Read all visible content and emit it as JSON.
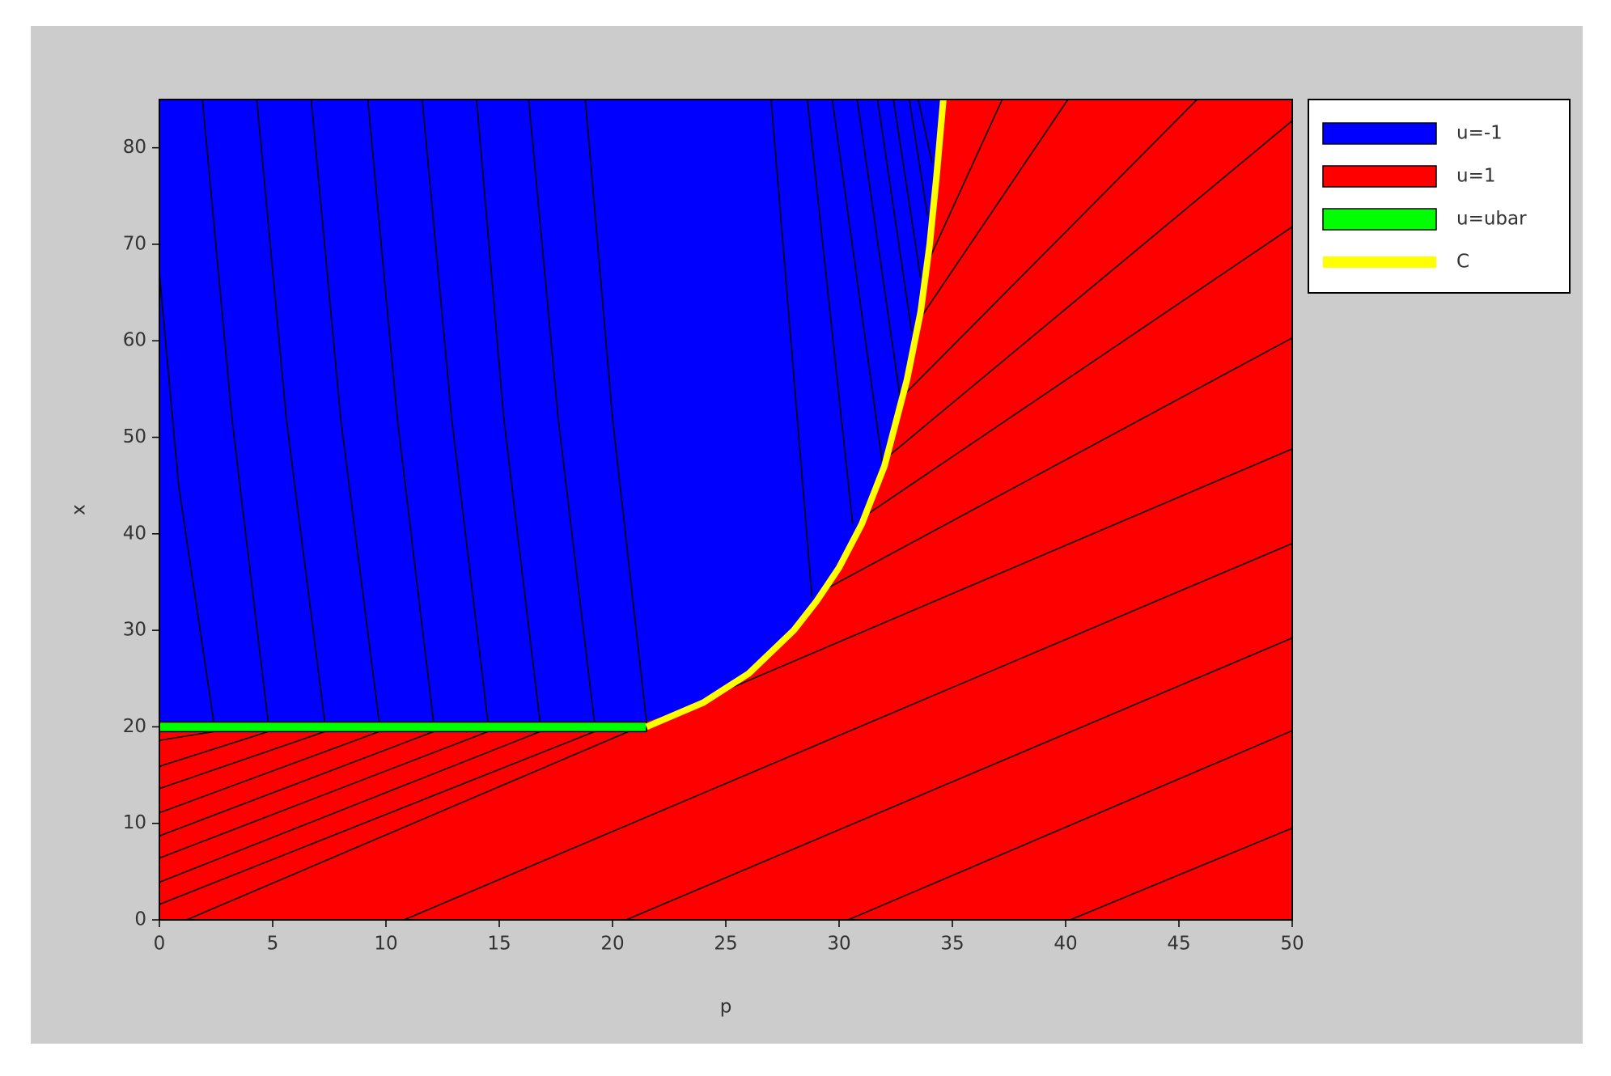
{
  "chart_data": {
    "type": "region",
    "xlabel": "p",
    "ylabel": "x",
    "xlim": [
      0,
      50
    ],
    "ylim": [
      0,
      85
    ],
    "xticks": [
      0,
      5,
      10,
      15,
      20,
      25,
      30,
      35,
      40,
      45,
      50
    ],
    "yticks": [
      0,
      10,
      20,
      30,
      40,
      50,
      60,
      70,
      80
    ],
    "series": [
      {
        "name": "u=-1",
        "color": "#0000ff",
        "style": "area",
        "x": [
          0,
          0,
          21.5,
          24,
          26,
          28,
          29,
          30,
          31,
          32,
          33,
          33.6,
          34,
          34.3,
          34.6
        ],
        "values": [
          85,
          20.5,
          20.5,
          22.5,
          25.5,
          30,
          33,
          36.5,
          41,
          47,
          56,
          63,
          70,
          77,
          85
        ]
      },
      {
        "name": "u=1",
        "color": "#ff0000",
        "style": "area",
        "x": [
          0,
          50,
          50,
          0
        ],
        "values": [
          0,
          0,
          85,
          85
        ]
      },
      {
        "name": "u=ubar",
        "color": "#00ff00",
        "style": "area",
        "x": [
          0,
          21.5,
          21.5,
          0
        ],
        "values": [
          19.5,
          19.5,
          20.5,
          20.5
        ]
      },
      {
        "name": "C",
        "color": "#ffff00",
        "style": "line",
        "x": [
          21.5,
          24,
          26,
          28,
          29,
          30,
          31,
          32,
          33,
          33.6,
          34,
          34.3,
          34.6
        ],
        "values": [
          20,
          22.5,
          25.5,
          30,
          33,
          36.5,
          41,
          47,
          56,
          63,
          70,
          77,
          85
        ]
      }
    ],
    "trajectories": [
      {
        "x": [
          1.2,
          50
        ],
        "values": [
          0,
          48.8
        ]
      },
      {
        "x": [
          10.8,
          50
        ],
        "values": [
          0,
          39
        ]
      },
      {
        "x": [
          20.6,
          50
        ],
        "values": [
          0,
          29.2
        ]
      },
      {
        "x": [
          30.4,
          50
        ],
        "values": [
          0,
          19.6
        ]
      },
      {
        "x": [
          40.2,
          50
        ],
        "values": [
          0,
          9.5
        ]
      },
      {
        "x": [
          0,
          19.2
        ],
        "values": [
          1.6,
          19.5
        ]
      },
      {
        "x": [
          0,
          16.8
        ],
        "values": [
          3.9,
          19.5
        ]
      },
      {
        "x": [
          0,
          14.5
        ],
        "values": [
          6.4,
          19.5
        ]
      },
      {
        "x": [
          0,
          12.1
        ],
        "values": [
          8.7,
          19.5
        ]
      },
      {
        "x": [
          0,
          9.7
        ],
        "values": [
          11.1,
          19.5
        ]
      },
      {
        "x": [
          0,
          7.3
        ],
        "values": [
          13.6,
          19.5
        ]
      },
      {
        "x": [
          0,
          4.8
        ],
        "values": [
          15.9,
          19.5
        ]
      },
      {
        "x": [
          0,
          2.4
        ],
        "values": [
          18.6,
          19.5
        ]
      },
      {
        "x": [
          28.8,
          50
        ],
        "values": [
          33.5,
          60.3
        ]
      },
      {
        "x": [
          30.6,
          50
        ],
        "values": [
          41,
          71.8
        ]
      },
      {
        "x": [
          31.9,
          50
        ],
        "values": [
          47.5,
          82.8
        ]
      },
      {
        "x": [
          32.7,
          45.8
        ],
        "values": [
          54,
          85
        ]
      },
      {
        "x": [
          33.2,
          40.1
        ],
        "values": [
          61,
          85
        ]
      },
      {
        "x": [
          33.6,
          37.2
        ],
        "values": [
          66.5,
          85
        ]
      },
      {
        "x": [
          0,
          0.85,
          2.4
        ],
        "values": [
          67,
          45,
          20.5
        ]
      },
      {
        "x": [
          1.9,
          3.2,
          4.8
        ],
        "values": [
          85,
          52,
          20.5
        ]
      },
      {
        "x": [
          4.3,
          5.6,
          7.3
        ],
        "values": [
          85,
          52,
          20.5
        ]
      },
      {
        "x": [
          6.7,
          8.0,
          9.7
        ],
        "values": [
          85,
          52,
          20.5
        ]
      },
      {
        "x": [
          9.2,
          10.5,
          12.1
        ],
        "values": [
          85,
          52,
          20.5
        ]
      },
      {
        "x": [
          11.6,
          12.9,
          14.5
        ],
        "values": [
          85,
          52,
          20.5
        ]
      },
      {
        "x": [
          14.0,
          15.2,
          16.8
        ],
        "values": [
          85,
          52,
          20.5
        ]
      },
      {
        "x": [
          16.3,
          17.6,
          19.2
        ],
        "values": [
          85,
          52,
          20.5
        ]
      },
      {
        "x": [
          18.8,
          20.0,
          21.5
        ],
        "values": [
          85,
          52,
          20.5
        ]
      },
      {
        "x": [
          27.0,
          28.8
        ],
        "values": [
          85,
          33.5
        ]
      },
      {
        "x": [
          28.6,
          30.6
        ],
        "values": [
          85,
          41
        ]
      },
      {
        "x": [
          29.7,
          31.9
        ],
        "values": [
          85,
          47.5
        ]
      },
      {
        "x": [
          30.8,
          32.7
        ],
        "values": [
          85,
          54
        ]
      },
      {
        "x": [
          31.7,
          33.2
        ],
        "values": [
          85,
          61
        ]
      },
      {
        "x": [
          32.4,
          33.6
        ],
        "values": [
          85,
          66.5
        ]
      },
      {
        "x": [
          33.1,
          33.9
        ],
        "values": [
          85,
          73
        ]
      },
      {
        "x": [
          33.5,
          34.1
        ],
        "values": [
          85,
          78.5
        ]
      }
    ]
  }
}
